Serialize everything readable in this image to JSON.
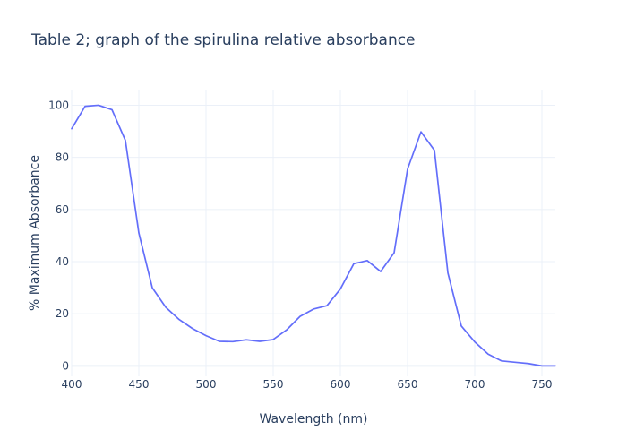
{
  "chart_data": {
    "type": "line",
    "title": "Table 2; graph of the spirulina relative absorbance",
    "xlabel": "Wavelength (nm)",
    "ylabel": "% Maximum Absorbance",
    "xlim": [
      400,
      760
    ],
    "ylim": [
      -4,
      106
    ],
    "xticks": [
      400,
      450,
      500,
      550,
      600,
      650,
      700,
      750
    ],
    "yticks": [
      0,
      20,
      40,
      60,
      80,
      100
    ],
    "grid": true,
    "legend": "none",
    "series": [
      {
        "color": "#636efa",
        "x": [
          400,
          410,
          420,
          430,
          440,
          450,
          460,
          470,
          480,
          490,
          500,
          510,
          520,
          530,
          540,
          550,
          560,
          570,
          580,
          590,
          600,
          610,
          620,
          630,
          640,
          650,
          660,
          670,
          680,
          690,
          700,
          710,
          720,
          730,
          740,
          750,
          760
        ],
        "y": [
          91,
          99.6,
          100,
          98.3,
          86.5,
          51,
          30,
          22.5,
          17.8,
          14.3,
          11.6,
          9.4,
          9.3,
          10,
          9.4,
          10.1,
          13.8,
          19,
          21.8,
          23.1,
          29.5,
          39.2,
          40.4,
          36.2,
          43.4,
          75.5,
          89.8,
          82.7,
          35.7,
          15.3,
          9.2,
          4.5,
          1.9,
          1.4,
          0.9,
          0,
          0
        ]
      }
    ]
  }
}
